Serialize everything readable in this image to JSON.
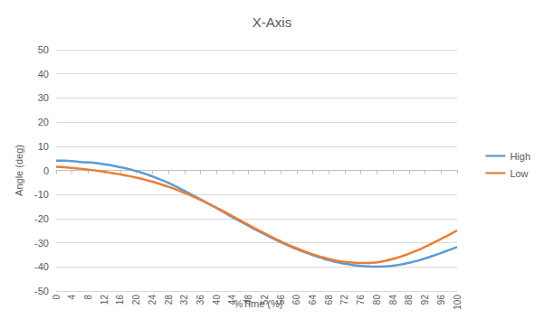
{
  "chart_data": {
    "type": "line",
    "title": "X-Axis",
    "x_label": "%Time (%)",
    "y_label": "Angle (deg)",
    "x": [
      0,
      2,
      4,
      6,
      8,
      10,
      12,
      14,
      16,
      18,
      20,
      22,
      24,
      26,
      28,
      30,
      32,
      34,
      36,
      38,
      40,
      42,
      44,
      46,
      48,
      50,
      52,
      54,
      56,
      58,
      60,
      62,
      64,
      66,
      68,
      70,
      72,
      74,
      76,
      78,
      80,
      82,
      84,
      86,
      88,
      90,
      92,
      94,
      96,
      98,
      100
    ],
    "series": [
      {
        "name": "High",
        "color": "#5b9bd5",
        "values": [
          4.0,
          4.0,
          3.8,
          3.5,
          3.3,
          3.0,
          2.5,
          2.0,
          1.3,
          0.6,
          -0.3,
          -1.3,
          -2.5,
          -3.8,
          -5.2,
          -6.8,
          -8.5,
          -10.2,
          -12.0,
          -13.8,
          -15.6,
          -17.5,
          -19.4,
          -21.2,
          -23.0,
          -24.8,
          -26.5,
          -28.1,
          -29.7,
          -31.2,
          -32.6,
          -33.9,
          -35.1,
          -36.2,
          -37.2,
          -38.0,
          -38.7,
          -39.2,
          -39.6,
          -39.8,
          -39.9,
          -39.8,
          -39.5,
          -39.0,
          -38.3,
          -37.5,
          -36.5,
          -35.4,
          -34.2,
          -33.0,
          -31.8
        ]
      },
      {
        "name": "Low",
        "color": "#ed7d31",
        "values": [
          1.5,
          1.3,
          1.0,
          0.7,
          0.3,
          -0.1,
          -0.6,
          -1.1,
          -1.7,
          -2.3,
          -3.0,
          -3.8,
          -4.7,
          -5.7,
          -6.8,
          -8.0,
          -9.3,
          -10.7,
          -12.2,
          -13.8,
          -15.5,
          -17.2,
          -19.0,
          -20.8,
          -22.6,
          -24.4,
          -26.1,
          -27.8,
          -29.4,
          -30.9,
          -32.3,
          -33.6,
          -34.8,
          -35.8,
          -36.7,
          -37.4,
          -37.9,
          -38.2,
          -38.4,
          -38.4,
          -38.1,
          -37.5,
          -36.7,
          -35.7,
          -34.5,
          -33.2,
          -31.7,
          -30.1,
          -28.4,
          -26.7,
          -24.9
        ]
      }
    ],
    "xlim": [
      0,
      100
    ],
    "xticks": [
      0,
      4,
      8,
      12,
      16,
      20,
      24,
      28,
      32,
      36,
      40,
      44,
      48,
      52,
      56,
      60,
      64,
      68,
      72,
      76,
      80,
      84,
      88,
      92,
      96,
      100
    ],
    "ylim": [
      -50,
      50
    ],
    "yticks": [
      -50,
      -40,
      -30,
      -20,
      -10,
      0,
      10,
      20,
      30,
      40,
      50
    ],
    "grid": true,
    "legend": "right"
  }
}
